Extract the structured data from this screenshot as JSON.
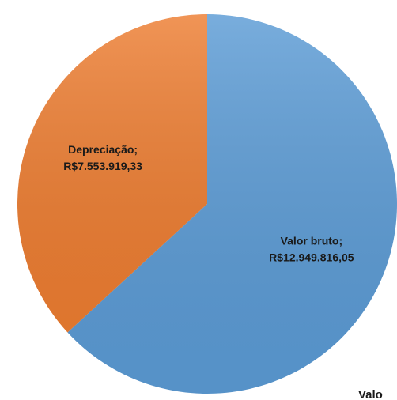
{
  "chart_data": {
    "type": "pie",
    "categories": [
      "Valor bruto;",
      "Depreciação;"
    ],
    "values": [
      12949816.05,
      7553919.33
    ],
    "value_labels": [
      "R$12.949.816,05",
      "R$7.553.919,33"
    ],
    "colors": [
      "#5b9bd5",
      "#ed7d31"
    ],
    "annotation": "Valo"
  }
}
